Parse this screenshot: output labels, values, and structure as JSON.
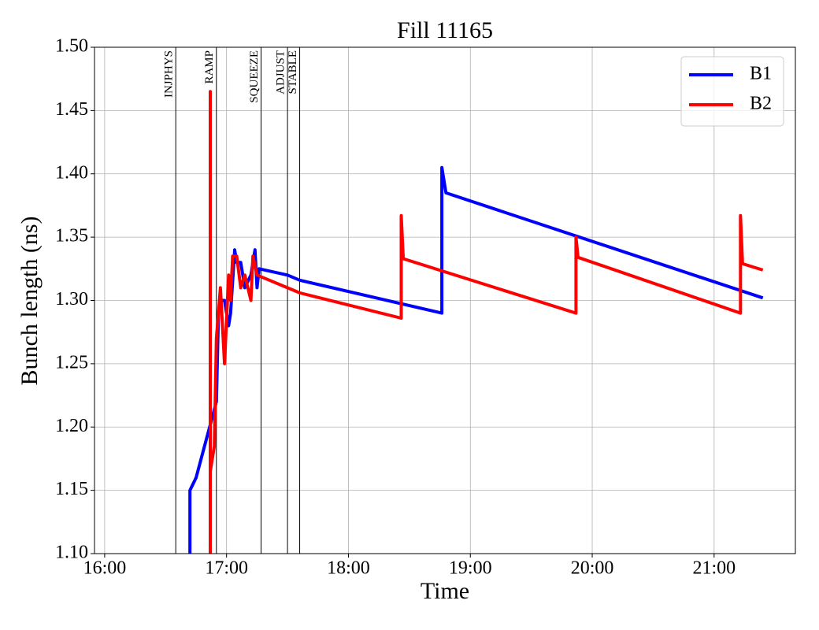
{
  "chart_data": {
    "type": "line",
    "title": "Fill 11165",
    "xlabel": "Time",
    "ylabel": "Bunch length (ns)",
    "xlim": [
      "15:55",
      "21:40"
    ],
    "xticks": [
      "16:00",
      "17:00",
      "18:00",
      "19:00",
      "20:00",
      "21:00"
    ],
    "ylim": [
      1.1,
      1.5
    ],
    "yticks": [
      {
        "value": 1.1,
        "label": "1.10"
      },
      {
        "value": 1.15,
        "label": "1.15"
      },
      {
        "value": 1.2,
        "label": "1.20"
      },
      {
        "value": 1.25,
        "label": "1.25"
      },
      {
        "value": 1.3,
        "label": "1.30"
      },
      {
        "value": 1.35,
        "label": "1.35"
      },
      {
        "value": 1.4,
        "label": "1.40"
      },
      {
        "value": 1.45,
        "label": "1.45"
      },
      {
        "value": 1.5,
        "label": "1.50"
      }
    ],
    "grid": true,
    "legend": "upper right",
    "phases": [
      {
        "label": "INJPHYS",
        "x": "16:35"
      },
      {
        "label": "RAMP",
        "x": "16:55"
      },
      {
        "label": "SQUEEZE",
        "x": "17:17"
      },
      {
        "label": "ADJUST",
        "x": "17:30"
      },
      {
        "label": "STABLE",
        "x": "17:36"
      }
    ],
    "series": [
      {
        "name": "B1",
        "color": "#0000ff",
        "x": [
          "16:42",
          "16:42",
          "16:45",
          "16:55",
          "16:56",
          "16:57",
          "16:59",
          "17:01",
          "17:02",
          "17:04",
          "17:05",
          "17:07",
          "17:09",
          "17:12",
          "17:14",
          "17:15",
          "17:16",
          "17:30",
          "17:36",
          "18:46",
          "18:46",
          "18:48",
          "21:24"
        ],
        "values": [
          1.1,
          1.15,
          1.16,
          1.22,
          1.29,
          1.3,
          1.3,
          1.28,
          1.29,
          1.34,
          1.33,
          1.33,
          1.31,
          1.32,
          1.34,
          1.31,
          1.325,
          1.32,
          1.316,
          1.29,
          1.405,
          1.385,
          1.302
        ]
      },
      {
        "name": "B2",
        "color": "#ff0000",
        "x": [
          "16:52",
          "16:52",
          "16:52",
          "16:54",
          "16:55",
          "16:57",
          "16:58",
          "16:59",
          "17:01",
          "17:02",
          "17:03",
          "17:05",
          "17:07",
          "17:09",
          "17:12",
          "17:13",
          "17:15",
          "17:36",
          "18:26",
          "18:26",
          "18:27",
          "19:52",
          "19:52",
          "19:53",
          "21:13",
          "21:13",
          "21:14",
          "21:24"
        ],
        "values": [
          1.1,
          1.465,
          1.165,
          1.185,
          1.27,
          1.31,
          1.28,
          1.25,
          1.32,
          1.3,
          1.335,
          1.335,
          1.31,
          1.32,
          1.3,
          1.335,
          1.32,
          1.306,
          1.286,
          1.367,
          1.333,
          1.29,
          1.35,
          1.334,
          1.29,
          1.367,
          1.329,
          1.324
        ]
      }
    ]
  }
}
